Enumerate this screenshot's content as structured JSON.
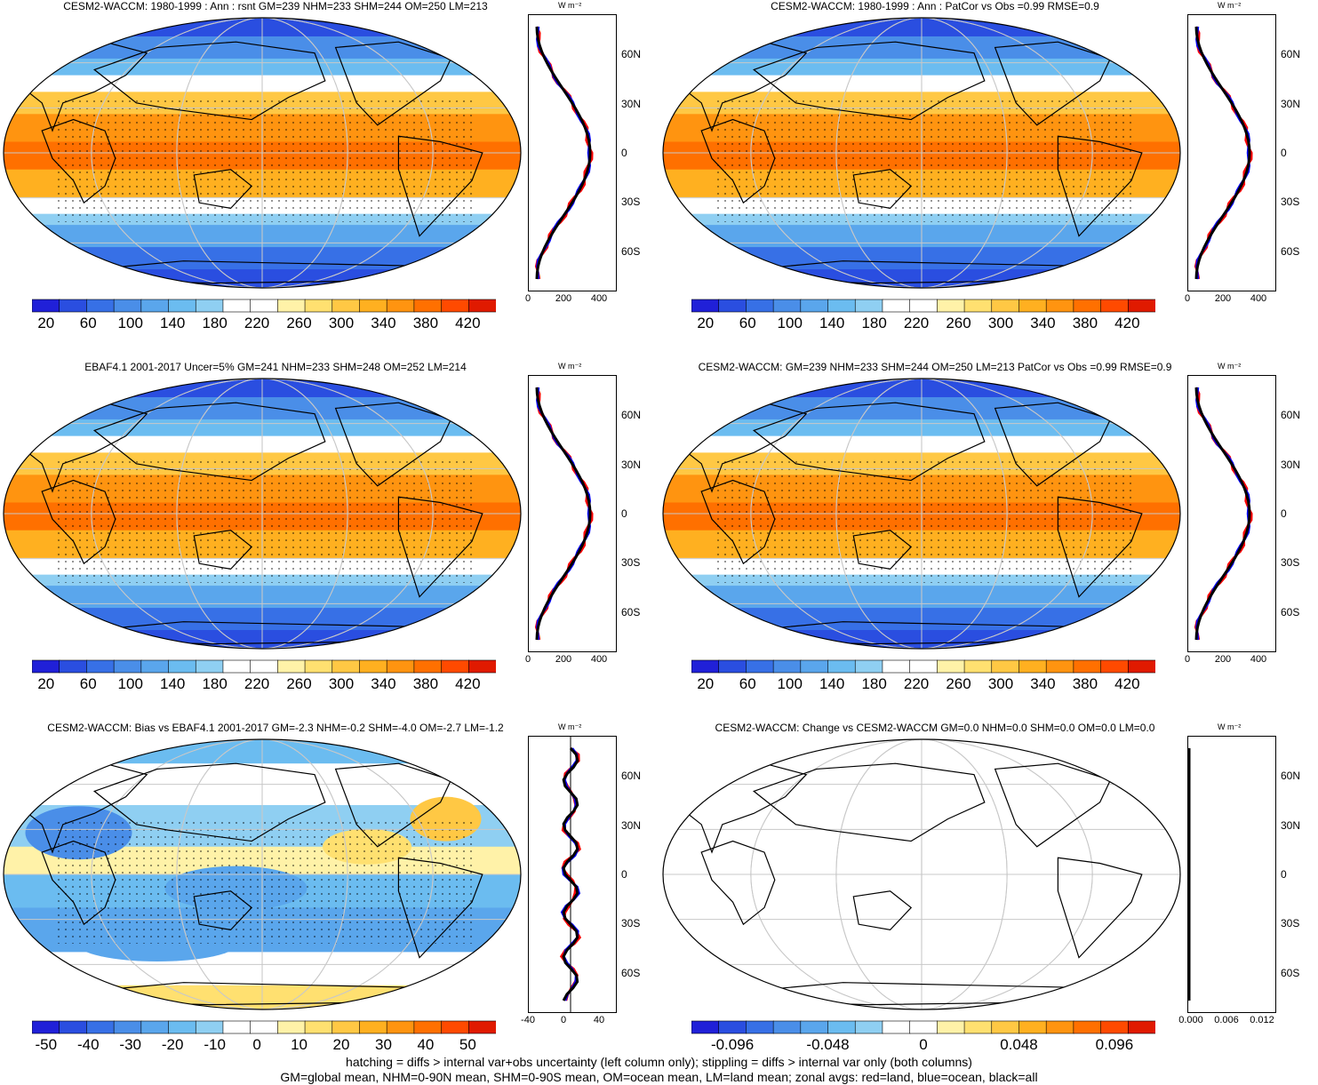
{
  "panels": [
    {
      "id": "p1",
      "title": "CESM2-WACCM: 1980-1999 : Ann : rsnt GM=239 NHM=233 SHM=244 OM=250 LM=213",
      "unit": "W m⁻²",
      "lat_labels": [
        "60N",
        "30N",
        "0",
        "30S",
        "60S"
      ],
      "zonal_xticks": [
        "0",
        "200",
        "400"
      ],
      "colorbar_labels": [
        "20",
        "60",
        "100",
        "140",
        "180",
        "220",
        "260",
        "300",
        "340",
        "380",
        "420"
      ],
      "hatched": true,
      "stippled": true
    },
    {
      "id": "p2",
      "title": "CESM2-WACCM: 1980-1999 : Ann : PatCor vs Obs =0.99 RMSE=0.9",
      "unit": "W m⁻²",
      "lat_labels": [
        "60N",
        "30N",
        "0",
        "30S",
        "60S"
      ],
      "zonal_xticks": [
        "0",
        "200",
        "400"
      ],
      "colorbar_labels": [
        "20",
        "60",
        "100",
        "140",
        "180",
        "220",
        "260",
        "300",
        "340",
        "380",
        "420"
      ],
      "hatched": false,
      "stippled": false
    },
    {
      "id": "p3",
      "title": "EBAF4.1 2001-2017 Uncer=5% GM=241 NHM=233 SHM=248 OM=252 LM=214",
      "unit": "W m⁻²",
      "lat_labels": [
        "60N",
        "30N",
        "0",
        "30S",
        "60S"
      ],
      "zonal_xticks": [
        "0",
        "200",
        "400"
      ],
      "colorbar_labels": [
        "20",
        "60",
        "100",
        "140",
        "180",
        "220",
        "260",
        "300",
        "340",
        "380",
        "420"
      ],
      "hatched": true,
      "stippled": true
    },
    {
      "id": "p4",
      "title": "CESM2-WACCM: GM=239 NHM=233 SHM=244 OM=250 LM=213 PatCor vs Obs =0.99 RMSE=0.9",
      "unit": "W m⁻²",
      "lat_labels": [
        "60N",
        "30N",
        "0",
        "30S",
        "60S"
      ],
      "zonal_xticks": [
        "0",
        "200",
        "400"
      ],
      "colorbar_labels": [
        "20",
        "60",
        "100",
        "140",
        "180",
        "220",
        "260",
        "300",
        "340",
        "380",
        "420"
      ],
      "hatched": false,
      "stippled": false
    },
    {
      "id": "p5",
      "title": "CESM2-WACCM: Bias vs EBAF4.1 2001-2017 GM=-2.3 NHM=-0.2 SHM=-4.0 OM=-2.7 LM=-1.2",
      "unit": "W m⁻²",
      "lat_labels": [
        "60N",
        "30N",
        "0",
        "30S",
        "60S"
      ],
      "zonal_xticks": [
        "-40",
        "0",
        "40"
      ],
      "colorbar_labels": [
        "-50",
        "-40",
        "-30",
        "-20",
        "-10",
        "0",
        "10",
        "20",
        "30",
        "40",
        "50"
      ],
      "hatched": true,
      "stippled": true
    },
    {
      "id": "p6",
      "title": "CESM2-WACCM: Change vs CESM2-WACCM GM=0.0 NHM=0.0 SHM=0.0 OM=0.0 LM=0.0",
      "unit": "W m⁻²",
      "lat_labels": [
        "60N",
        "30N",
        "0",
        "30S",
        "60S"
      ],
      "zonal_xticks": [
        "0.000",
        "0.006",
        "0.012"
      ],
      "colorbar_labels": [
        "-0.096",
        "-0.048",
        "0",
        "0.048",
        "0.096"
      ],
      "hatched": false,
      "stippled": false
    }
  ],
  "footer": {
    "line1": "hatching = diffs > internal var+obs uncertainty (left column only); stippling = diffs > internal var only (both columns)",
    "line2": "GM=global mean, NHM=0-90N mean, SHM=0-90S mean, OM=ocean mean, LM=land mean; zonal avgs: red=land, blue=ocean, black=all"
  },
  "colors": {
    "ramp": [
      "#2020d8",
      "#2a4ee0",
      "#3770e6",
      "#4a8ee8",
      "#5aa6ec",
      "#6bbcf0",
      "#8fcff2",
      "#ffffff",
      "#ffffff",
      "#fff2a8",
      "#ffe070",
      "#ffc844",
      "#ffb020",
      "#ff9410",
      "#ff7000",
      "#ff4a00",
      "#e01a00"
    ],
    "land_zonal": "#ff0000",
    "ocean_zonal": "#0000ff",
    "all_zonal": "#000000"
  }
}
